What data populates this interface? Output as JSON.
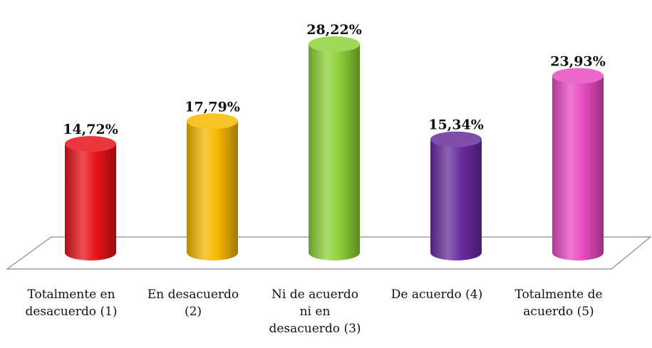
{
  "chart_data": {
    "type": "bar",
    "categories": [
      "Totalmente en\ndesacuerdo (1)",
      "En desacuerdo\n(2)",
      "Ni de acuerdo\nni en\ndesacuerdo (3)",
      "De acuerdo (4)",
      "Totalmente de\nacuerdo (5)"
    ],
    "values": [
      14.72,
      17.79,
      28.22,
      15.34,
      23.93
    ],
    "data_labels": [
      "14,72%",
      "17,79%",
      "28,22%",
      "15,34%",
      "23,93%"
    ],
    "colors": [
      "#e8141a",
      "#f5b800",
      "#8fd13a",
      "#6a2d9e",
      "#e84cc2"
    ],
    "title": "",
    "xlabel": "",
    "ylabel": "",
    "ylim": [
      0,
      30
    ],
    "grid": false,
    "legend": "none",
    "style": "3d-cylinder"
  }
}
